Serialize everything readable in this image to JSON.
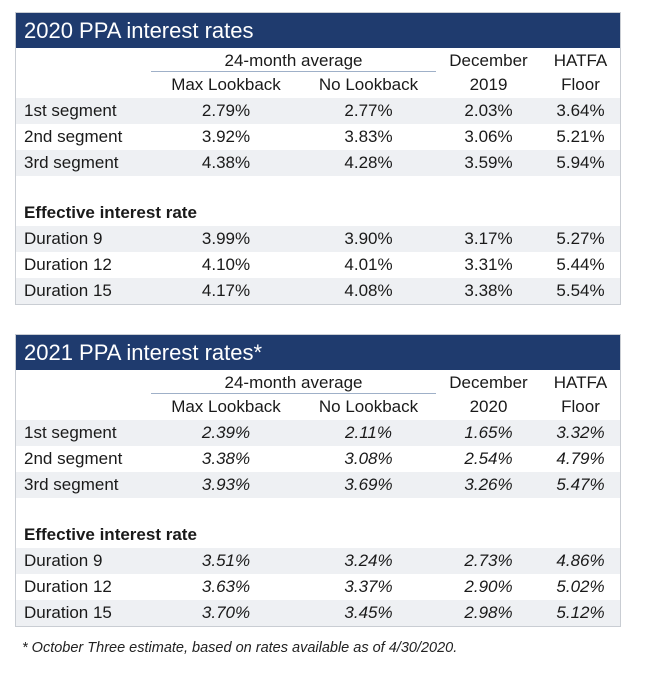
{
  "table_2020": {
    "title": "2020 PPA interest rates",
    "header": {
      "group": "24-month average",
      "col1": "Max Lookback",
      "col2": "No Lookback",
      "col3_top": "December",
      "col3_bottom": "2019",
      "col4_top": "HATFA",
      "col4_bottom": "Floor"
    },
    "segments": [
      {
        "label": "1st segment",
        "max": "2.79%",
        "no": "2.77%",
        "dec": "2.03%",
        "floor": "3.64%"
      },
      {
        "label": "2nd segment",
        "max": "3.92%",
        "no": "3.83%",
        "dec": "3.06%",
        "floor": "5.21%"
      },
      {
        "label": "3rd segment",
        "max": "4.38%",
        "no": "4.28%",
        "dec": "3.59%",
        "floor": "5.94%"
      }
    ],
    "effective_heading": "Effective interest rate",
    "durations": [
      {
        "label": "Duration 9",
        "max": "3.99%",
        "no": "3.90%",
        "dec": "3.17%",
        "floor": "5.27%"
      },
      {
        "label": "Duration 12",
        "max": "4.10%",
        "no": "4.01%",
        "dec": "3.31%",
        "floor": "5.44%"
      },
      {
        "label": "Duration 15",
        "max": "4.17%",
        "no": "4.08%",
        "dec": "3.38%",
        "floor": "5.54%"
      }
    ]
  },
  "table_2021": {
    "title": "2021 PPA interest rates*",
    "header": {
      "group": "24-month average",
      "col1": "Max Lookback",
      "col2": "No Lookback",
      "col3_top": "December",
      "col3_bottom": "2020",
      "col4_top": "HATFA",
      "col4_bottom": "Floor"
    },
    "segments": [
      {
        "label": "1st segment",
        "max": "2.39%",
        "no": "2.11%",
        "dec": "1.65%",
        "floor": "3.32%"
      },
      {
        "label": "2nd segment",
        "max": "3.38%",
        "no": "3.08%",
        "dec": "2.54%",
        "floor": "4.79%"
      },
      {
        "label": "3rd segment",
        "max": "3.93%",
        "no": "3.69%",
        "dec": "3.26%",
        "floor": "5.47%"
      }
    ],
    "effective_heading": "Effective interest rate",
    "durations": [
      {
        "label": "Duration 9",
        "max": "3.51%",
        "no": "3.24%",
        "dec": "2.73%",
        "floor": "4.86%"
      },
      {
        "label": "Duration 12",
        "max": "3.63%",
        "no": "3.37%",
        "dec": "2.90%",
        "floor": "5.02%"
      },
      {
        "label": "Duration 15",
        "max": "3.70%",
        "no": "3.45%",
        "dec": "2.98%",
        "floor": "5.12%"
      }
    ]
  },
  "footnote": "* October Three estimate, based on rates available as of 4/30/2020."
}
